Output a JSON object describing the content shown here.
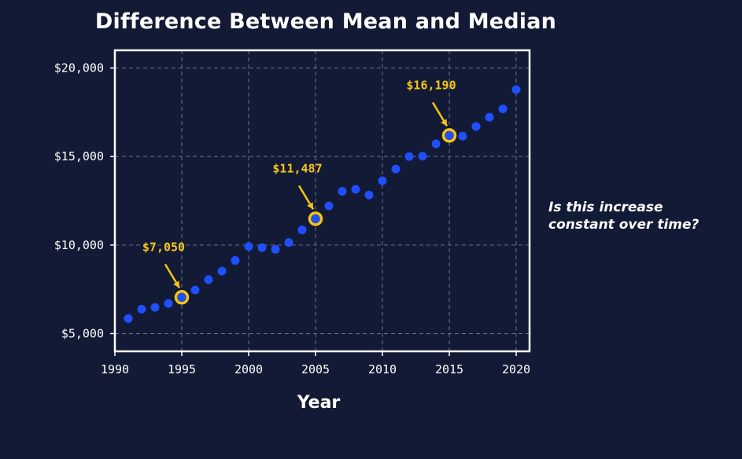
{
  "chart_data": {
    "type": "scatter",
    "title": "Difference Between Mean and Median",
    "xlabel": "Year",
    "ylabel": "",
    "xlim": [
      1990,
      2021
    ],
    "ylim": [
      4000,
      21000
    ],
    "xticks": [
      1990,
      1995,
      2000,
      2005,
      2010,
      2015,
      2020
    ],
    "xtick_labels": [
      "1990",
      "1995",
      "2000",
      "2005",
      "2010",
      "2015",
      "2020"
    ],
    "yticks": [
      5000,
      10000,
      15000,
      20000
    ],
    "ytick_labels": [
      "$5,000",
      "$10,000",
      "$15,000",
      "$20,000"
    ],
    "grid": true,
    "point_color": "#1f4fff",
    "highlight_color": "#f5c518",
    "x": [
      1991,
      1992,
      1993,
      1994,
      1995,
      1996,
      1997,
      1998,
      1999,
      2000,
      2001,
      2002,
      2003,
      2004,
      2005,
      2006,
      2007,
      2008,
      2009,
      2010,
      2011,
      2012,
      2013,
      2014,
      2015,
      2016,
      2017,
      2018,
      2019,
      2020
    ],
    "y": [
      5850,
      6380,
      6480,
      6700,
      7050,
      7460,
      8050,
      8530,
      9130,
      9920,
      9860,
      9760,
      10140,
      10860,
      11487,
      12210,
      13040,
      13150,
      12830,
      13630,
      14290,
      15000,
      15020,
      15720,
      16190,
      16150,
      16700,
      17220,
      17690,
      18780
    ],
    "annotations": [
      {
        "x": 1995,
        "y": 7050,
        "label": "$7,050"
      },
      {
        "x": 2005,
        "y": 11487,
        "label": "$11,487"
      },
      {
        "x": 2015,
        "y": 16190,
        "label": "$16,190"
      }
    ],
    "side_note": [
      "Is this increase",
      "constant over time?"
    ]
  }
}
